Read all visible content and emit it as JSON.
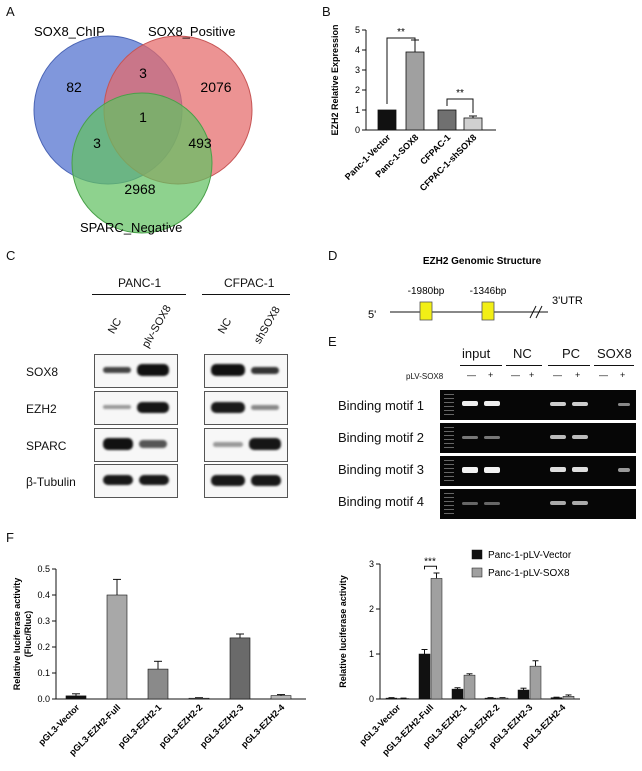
{
  "panel_letters": {
    "a": "A",
    "b": "B",
    "c": "C",
    "d": "D",
    "e": "E",
    "f": "F"
  },
  "venn": {
    "circles": [
      {
        "label": "SOX8_ChIP",
        "color": "#4f6fcf"
      },
      {
        "label": "SOX8_Positive",
        "color": "#e46a6a"
      },
      {
        "label": "SPARC_Negative",
        "color": "#63c063"
      }
    ],
    "regions": {
      "chip_only": "82",
      "positive_only": "2076",
      "negative_only": "2968",
      "chip_positive": "3",
      "chip_negative": "3",
      "positive_negative": "493",
      "all": "1"
    }
  },
  "chart_b": {
    "type": "bar",
    "ylabel": "EZH2 Relative Expression",
    "categories": [
      "Panc-1-Vector",
      "Panc-1-SOX8",
      "CFPAC-1",
      "CFPAC-1-shSOX8"
    ],
    "values": [
      1.0,
      3.9,
      1.0,
      0.6
    ],
    "errors": [
      0,
      0.6,
      0,
      0.1
    ],
    "ylim": [
      0,
      5
    ],
    "yticks": [
      "0",
      "1",
      "2",
      "3",
      "4",
      "5"
    ],
    "colors": [
      "#111111",
      "#a0a0a0",
      "#707070",
      "#d0d0d0"
    ],
    "sig": [
      "**",
      "**"
    ]
  },
  "western": {
    "groups": [
      {
        "name": "PANC-1",
        "lanes": [
          "NC",
          "plv-SOX8"
        ]
      },
      {
        "name": "CFPAC-1",
        "lanes": [
          "NC",
          "shSOX8"
        ]
      }
    ],
    "rows": [
      "SOX8",
      "EZH2",
      "SPARC",
      "β-Tubulin"
    ]
  },
  "genomic": {
    "title": "EZH2 Genomic Structure",
    "five": "5'",
    "three": "3'UTR",
    "sites": [
      "-1980bp",
      "-1346bp"
    ]
  },
  "gel": {
    "columns": [
      "input",
      "NC",
      "PC",
      "SOX8"
    ],
    "rowlabel": "pLV-SOX8",
    "signs": [
      "—",
      "+",
      "—",
      "+",
      "—",
      "+",
      "—",
      "+"
    ],
    "rows": [
      "Binding motif 1",
      "Binding motif 2",
      "Binding motif 3",
      "Binding motif 4"
    ]
  },
  "chart_f1": {
    "type": "bar",
    "ylabel": "Relative luciferase activity (Fluc/Rluc)",
    "ylabel_lines": [
      "Relative luciferase activity",
      "(Fluc/Rluc)"
    ],
    "categories": [
      "pGL3-Vector",
      "pGL3-EZH2-Full",
      "pGL3-EZH2-1",
      "pGL3-EZH2-2",
      "pGL3-EZH2-3",
      "pGL3-EZH2-4"
    ],
    "values": [
      0.012,
      0.4,
      0.115,
      0.003,
      0.235,
      0.013
    ],
    "errors": [
      0.008,
      0.06,
      0.03,
      0.002,
      0.015,
      0.004
    ],
    "ylim": [
      0,
      0.5
    ],
    "yticks": [
      "0.0",
      "0.1",
      "0.2",
      "0.3",
      "0.4",
      "0.5"
    ],
    "colors": [
      "#111111",
      "#a8a8a8",
      "#8a8a8a",
      "#c8c8c8",
      "#6a6a6a",
      "#b8b8b8"
    ]
  },
  "chart_f2": {
    "type": "bar",
    "ylabel": "Relative luciferase activity",
    "categories": [
      "pGL3-Vector",
      "pGL3-EZH2-Full",
      "pGL3-EZH2-1",
      "pGL3-EZH2-2",
      "pGL3-EZH2-3",
      "pGL3-EZH2-4"
    ],
    "series": [
      {
        "name": "Panc-1-pLV-Vector",
        "color": "#111111",
        "values": [
          0.02,
          1.0,
          0.22,
          0.02,
          0.2,
          0.03
        ],
        "errors": [
          0.01,
          0.1,
          0.03,
          0.01,
          0.04,
          0.01
        ]
      },
      {
        "name": "Panc-1-pLV-SOX8",
        "color": "#a0a0a0",
        "values": [
          0.01,
          2.68,
          0.53,
          0.02,
          0.73,
          0.06
        ],
        "errors": [
          0.01,
          0.12,
          0.03,
          0.01,
          0.12,
          0.03
        ]
      }
    ],
    "ylim": [
      0,
      3
    ],
    "yticks": [
      "0",
      "1",
      "2",
      "3"
    ],
    "sig": "***"
  }
}
